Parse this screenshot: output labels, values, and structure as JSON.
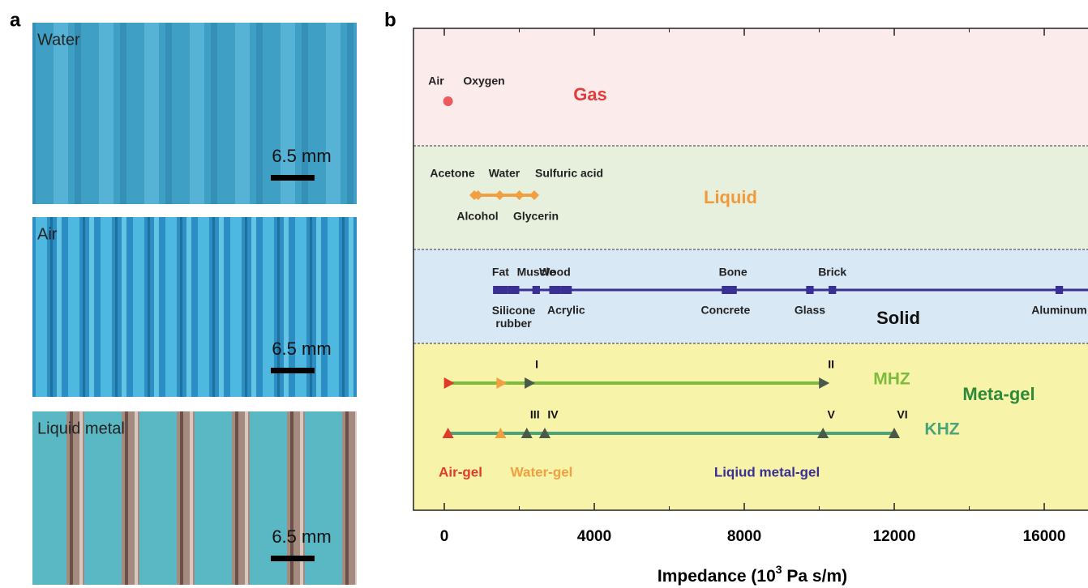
{
  "panel_labels": [
    "a",
    "b"
  ],
  "photos": [
    {
      "label": "Water",
      "scale": "6.5 mm"
    },
    {
      "label": "Air",
      "scale": "6.5 mm"
    },
    {
      "label": "Liquid metal",
      "scale": "6.5 mm"
    }
  ],
  "chart_data": {
    "type": "impedance-map",
    "x_label": "Impedance (10",
    "x_label_exponent": "3",
    "x_label_unit": " Pa  s/m)",
    "xlim": [
      -822,
      17167
    ],
    "xticks": [
      0,
      4000,
      8000,
      12000,
      16000
    ],
    "xminor_ticks": [
      2000,
      6000,
      10000,
      14000
    ],
    "bands": [
      {
        "name": "Gas",
        "fill": "#fcebeb",
        "text_color": "#e23b3b"
      },
      {
        "name": "Liquid",
        "fill": "#e6f0dc",
        "text_color": "#f29a3a"
      },
      {
        "name": "Solid",
        "fill": "#d9e8f5",
        "text_color": "#111111"
      },
      {
        "name": "Meta-gel",
        "fill": "#f7f3a8",
        "text_color": "#2e8a3a"
      }
    ],
    "gas": {
      "color": "#ec5a60",
      "points": [
        {
          "name": "Air",
          "value": 100
        },
        {
          "name": "Oxygen",
          "value": 100
        }
      ]
    },
    "liquid": {
      "color": "#f0a040",
      "points": [
        {
          "name": "Acetone",
          "value": 900
        },
        {
          "name": "Water",
          "value": 1480
        },
        {
          "name": "Sulfuric acid",
          "value": 2400
        },
        {
          "name": "Alcohol",
          "value": 800
        },
        {
          "name": "Glycerin",
          "value": 2000
        }
      ]
    },
    "solid": {
      "color": "#3a2f94",
      "start": 1300,
      "materials": [
        {
          "name": "Fat",
          "values": [
            1300,
            1700
          ],
          "side": "above"
        },
        {
          "name": "Silicone rubber",
          "values": [
            1700,
            2000
          ],
          "side": "below"
        },
        {
          "name": "Muscle",
          "values": [
            2350,
            2550
          ],
          "side": "above"
        },
        {
          "name": "Wood",
          "values": [
            2800,
            3100
          ],
          "side": "above"
        },
        {
          "name": "Acrylic",
          "values": [
            3100,
            3400
          ],
          "side": "below"
        },
        {
          "name": "Bone",
          "values": [
            7600,
            7800
          ],
          "side": "above"
        },
        {
          "name": "Concrete",
          "values": [
            7400,
            7600
          ],
          "side": "below"
        },
        {
          "name": "Glass",
          "values": [
            9650,
            9850
          ],
          "side": "below"
        },
        {
          "name": "Brick",
          "values": [
            10250,
            10450
          ],
          "side": "above"
        },
        {
          "name": "Aluminum",
          "values": [
            16300,
            16500
          ],
          "side": "below"
        }
      ]
    },
    "gel_types": [
      {
        "name": "Air-gel",
        "color": "#e03a2a"
      },
      {
        "name": "Water-gel",
        "color": "#f0a040"
      },
      {
        "name": "Liqiud metal-gel",
        "color": "#3a2f94"
      }
    ],
    "series": [
      {
        "name": "MHZ",
        "color": "#7dbb3e",
        "marker": "right",
        "values": [
          100,
          1500,
          2250,
          10100
        ],
        "marker_colors": [
          "#e03a2a",
          "#f0a040",
          "#4a5a4a",
          "#4a5a4a"
        ],
        "labels": [
          null,
          null,
          "I",
          "II"
        ]
      },
      {
        "name": "KHZ",
        "color": "#4aa37a",
        "marker": "up",
        "values": [
          100,
          1500,
          2200,
          2680,
          10100,
          12000
        ],
        "marker_colors": [
          "#e03a2a",
          "#f0a040",
          "#4a5a4a",
          "#4a5a4a",
          "#4a5a4a",
          "#4a5a4a"
        ],
        "labels": [
          null,
          null,
          "III",
          "IV",
          "V",
          "VI"
        ]
      }
    ]
  }
}
